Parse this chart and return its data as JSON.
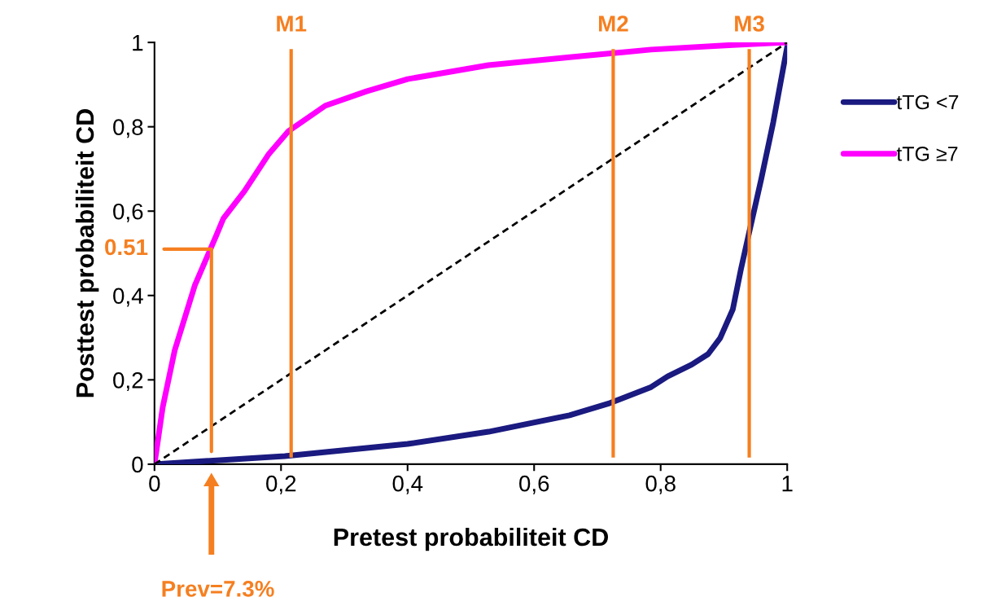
{
  "chart_data": {
    "type": "line",
    "xlabel": "Pretest probabiliteit CD",
    "ylabel": "Posttest probabiliteit CD",
    "xlim": [
      0,
      1
    ],
    "ylim": [
      0,
      1
    ],
    "xticks": [
      0,
      {
        "value": 0.2,
        "label": "0,2"
      },
      {
        "value": 0.4,
        "label": "0,4"
      },
      {
        "value": 0.6,
        "label": "0,6"
      },
      {
        "value": 0.8,
        "label": "0,8"
      },
      1
    ],
    "yticks": [
      0,
      {
        "value": 0.2,
        "label": "0,2"
      },
      {
        "value": 0.4,
        "label": "0,4"
      },
      {
        "value": 0.6,
        "label": "0,6"
      },
      {
        "value": 0.8,
        "label": "0,8"
      },
      1
    ],
    "grid": false,
    "legend": "top right",
    "marker": "none",
    "series": [
      {
        "name": "tTG <7",
        "color": "#1a1a80",
        "line_style": "solid",
        "x": [
          0,
          0.206,
          0.4,
          0.528,
          0.656,
          0.72,
          0.785,
          0.811,
          0.849,
          0.875,
          0.894,
          0.914,
          0.927,
          0.94,
          0.959,
          0.978,
          1
        ],
        "values": [
          0,
          0.019,
          0.048,
          0.077,
          0.116,
          0.145,
          0.183,
          0.208,
          0.236,
          0.261,
          0.299,
          0.367,
          0.463,
          0.55,
          0.676,
          0.811,
          0.99
        ]
      },
      {
        "name": "tTG ≥7",
        "color": "#ff00ff",
        "line_style": "solid",
        "x": [
          0,
          0.013,
          0.032,
          0.064,
          0.097,
          0.109,
          0.142,
          0.18,
          0.212,
          0.27,
          0.335,
          0.4,
          0.528,
          0.656,
          0.785,
          0.914,
          1
        ],
        "values": [
          0,
          0.135,
          0.27,
          0.425,
          0.54,
          0.583,
          0.647,
          0.734,
          0.79,
          0.85,
          0.884,
          0.913,
          0.946,
          0.965,
          0.983,
          0.994,
          1
        ]
      },
      {
        "color": "#000000",
        "line_style": "dashed",
        "x": [
          0,
          1
        ],
        "values": [
          0,
          1
        ]
      },
      {
        "color": "#f57f20",
        "line_style": "solid",
        "x": [
          0.015,
          0.09,
          0.09
        ],
        "values": [
          0.51,
          0.51,
          0.03
        ]
      }
    ],
    "ref_lines": [
      {
        "axis": "x",
        "value": 0.216,
        "label": "M1",
        "color": "#f57f20"
      },
      {
        "axis": "x",
        "value": 0.725,
        "label": "M2",
        "color": "#f57f20"
      },
      {
        "axis": "x",
        "value": 0.94,
        "label": "M3",
        "color": "#f57f20"
      }
    ],
    "annotations": [
      "0.51",
      "Prev=7.3%"
    ]
  }
}
